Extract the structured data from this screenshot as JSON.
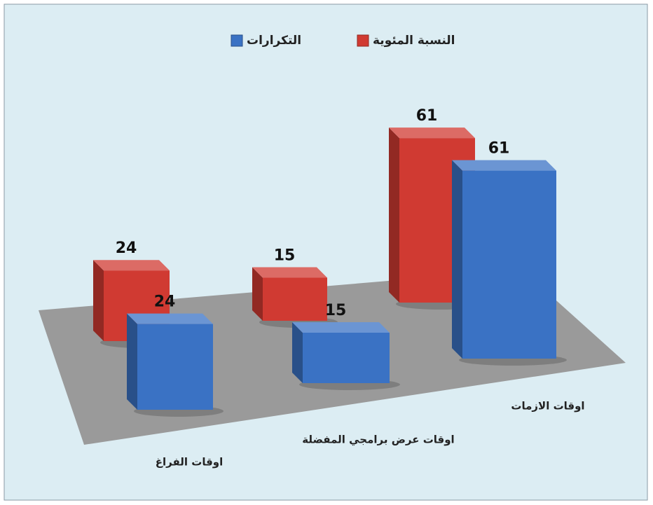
{
  "chart_data": {
    "type": "bar3d",
    "categories": [
      "اوقات الفراغ",
      "اوقات عرض برامجي المفضلة",
      "اوقات الازمات"
    ],
    "series": [
      {
        "name": "النسبة المئوية",
        "color": "#d03a32",
        "values": [
          24,
          15,
          61
        ]
      },
      {
        "name": "التكرارات",
        "color": "#3a72c4",
        "values": [
          24,
          15,
          61
        ]
      }
    ],
    "legend": "top"
  }
}
